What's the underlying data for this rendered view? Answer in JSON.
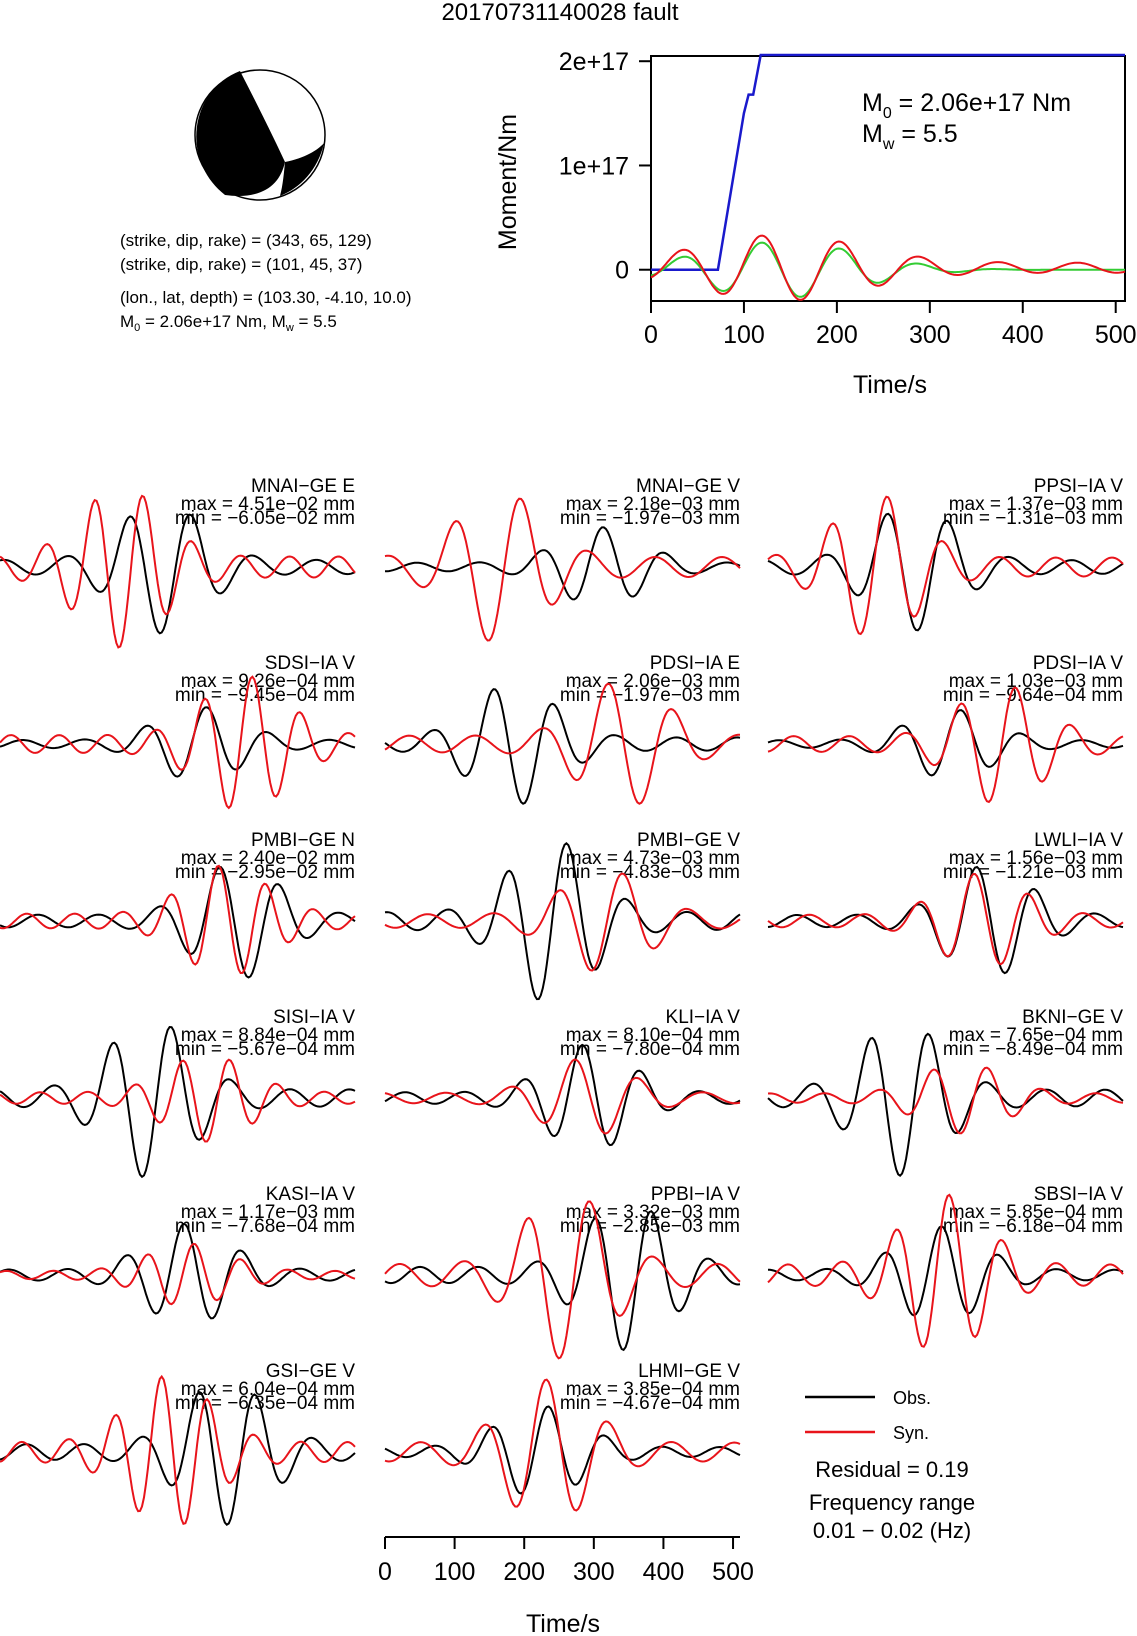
{
  "title": "20170731140028 fault",
  "mechanism": {
    "line1": "(strike, dip, rake) = (343, 65, 129)",
    "line2": "(strike, dip, rake) = (101, 45, 37)",
    "line3": "(lon., lat, depth) = (103.30, -4.10, 10.0)",
    "m0_prefix": "M",
    "m0_sub": "0",
    "m0_rest": " = 2.06e+17 Nm, M",
    "mw_sub": "w",
    "mw_rest": " = 5.5"
  },
  "colors": {
    "observed": "#000000",
    "synthetic": "#e8141b",
    "moment": "#1a1acc",
    "moment_fit": "#33cc33"
  },
  "chart_data": [
    {
      "type": "line",
      "title": "",
      "xlabel": "Time/s",
      "ylabel": "Moment/Nm",
      "xlim": [
        0,
        510
      ],
      "ylim": [
        -3e+16,
        2.05e+17
      ],
      "xticks": [
        "0",
        "100",
        "200",
        "300",
        "400",
        "500"
      ],
      "yticks": [
        "0",
        "1e+17",
        "2e+17"
      ],
      "annotation": {
        "m0_label": "M",
        "m0_sub": "0",
        "m0_text": " = 2.06e+17 Nm",
        "mw_label": "M",
        "mw_sub": "w",
        "mw_text": " = 5.5"
      },
      "series": [
        {
          "x": [
            0,
            72,
            100,
            105,
            110,
            118,
            123,
            510
          ],
          "y": [
            0,
            0,
            1.5e+17,
            1.68e+17,
            1.68e+17,
            2.06e+17,
            2.06e+17,
            2.06e+17
          ]
        }
      ]
    },
    {
      "type": "line",
      "xlabel": "Time/s",
      "xlim": [
        0,
        510
      ],
      "xticks": [
        "0",
        "100",
        "200",
        "300",
        "400",
        "500"
      ],
      "legend": {
        "observed": "Obs.",
        "synthetic": "Syn.",
        "position": "bottom-right"
      },
      "residual": "Residual = 0.19",
      "frequency_label": "Frequency range",
      "frequency_range": "0.01 − 0.02 (Hz)",
      "panels": [
        {
          "station": "MNAI−GE E",
          "max": "max = 4.51e−02 mm",
          "min": "min = −6.05e−02 mm"
        },
        {
          "station": "MNAI−GE V",
          "max": "max = 2.18e−03 mm",
          "min": "min = −1.97e−03 mm"
        },
        {
          "station": "PPSI−IA V",
          "max": "max = 1.37e−03 mm",
          "min": "min = −1.31e−03 mm"
        },
        {
          "station": "SDSI−IA V",
          "max": "max = 9.26e−04 mm",
          "min": "min = −9.45e−04 mm"
        },
        {
          "station": "PDSI−IA E",
          "max": "max = 2.06e−03 mm",
          "min": "min = −1.97e−03 mm"
        },
        {
          "station": "PDSI−IA V",
          "max": "max = 1.03e−03 mm",
          "min": "min = −9.64e−04 mm"
        },
        {
          "station": "PMBI−GE N",
          "max": "max = 2.40e−02 mm",
          "min": "min = −2.95e−02 mm"
        },
        {
          "station": "PMBI−GE V",
          "max": "max = 4.73e−03 mm",
          "min": "min = −4.83e−03 mm"
        },
        {
          "station": "LWLI−IA V",
          "max": "max = 1.56e−03 mm",
          "min": "min = −1.21e−03 mm"
        },
        {
          "station": "SISI−IA V",
          "max": "max = 8.84e−04 mm",
          "min": "min = −5.67e−04 mm"
        },
        {
          "station": "KLI−IA V",
          "max": "max = 8.10e−04 mm",
          "min": "min = −7.80e−04 mm"
        },
        {
          "station": "BKNI−GE V",
          "max": "max = 7.65e−04 mm",
          "min": "min = −8.49e−04 mm"
        },
        {
          "station": "KASI−IA V",
          "max": "max = 1.17e−03 mm",
          "min": "min = −7.68e−04 mm"
        },
        {
          "station": "PPBI−IA V",
          "max": "max = 3.32e−03 mm",
          "min": "min = −2.85e−03 mm"
        },
        {
          "station": "SBSI−IA V",
          "max": "max = 5.85e−04 mm",
          "min": "min = −6.18e−04 mm"
        },
        {
          "station": "GSI−GE V",
          "max": "max = 6.04e−04 mm",
          "min": "min = −6.35e−04 mm"
        },
        {
          "station": "LHMI−GE V",
          "max": "max = 3.85e−04 mm",
          "min": "min = −4.67e−04 mm"
        }
      ]
    }
  ]
}
